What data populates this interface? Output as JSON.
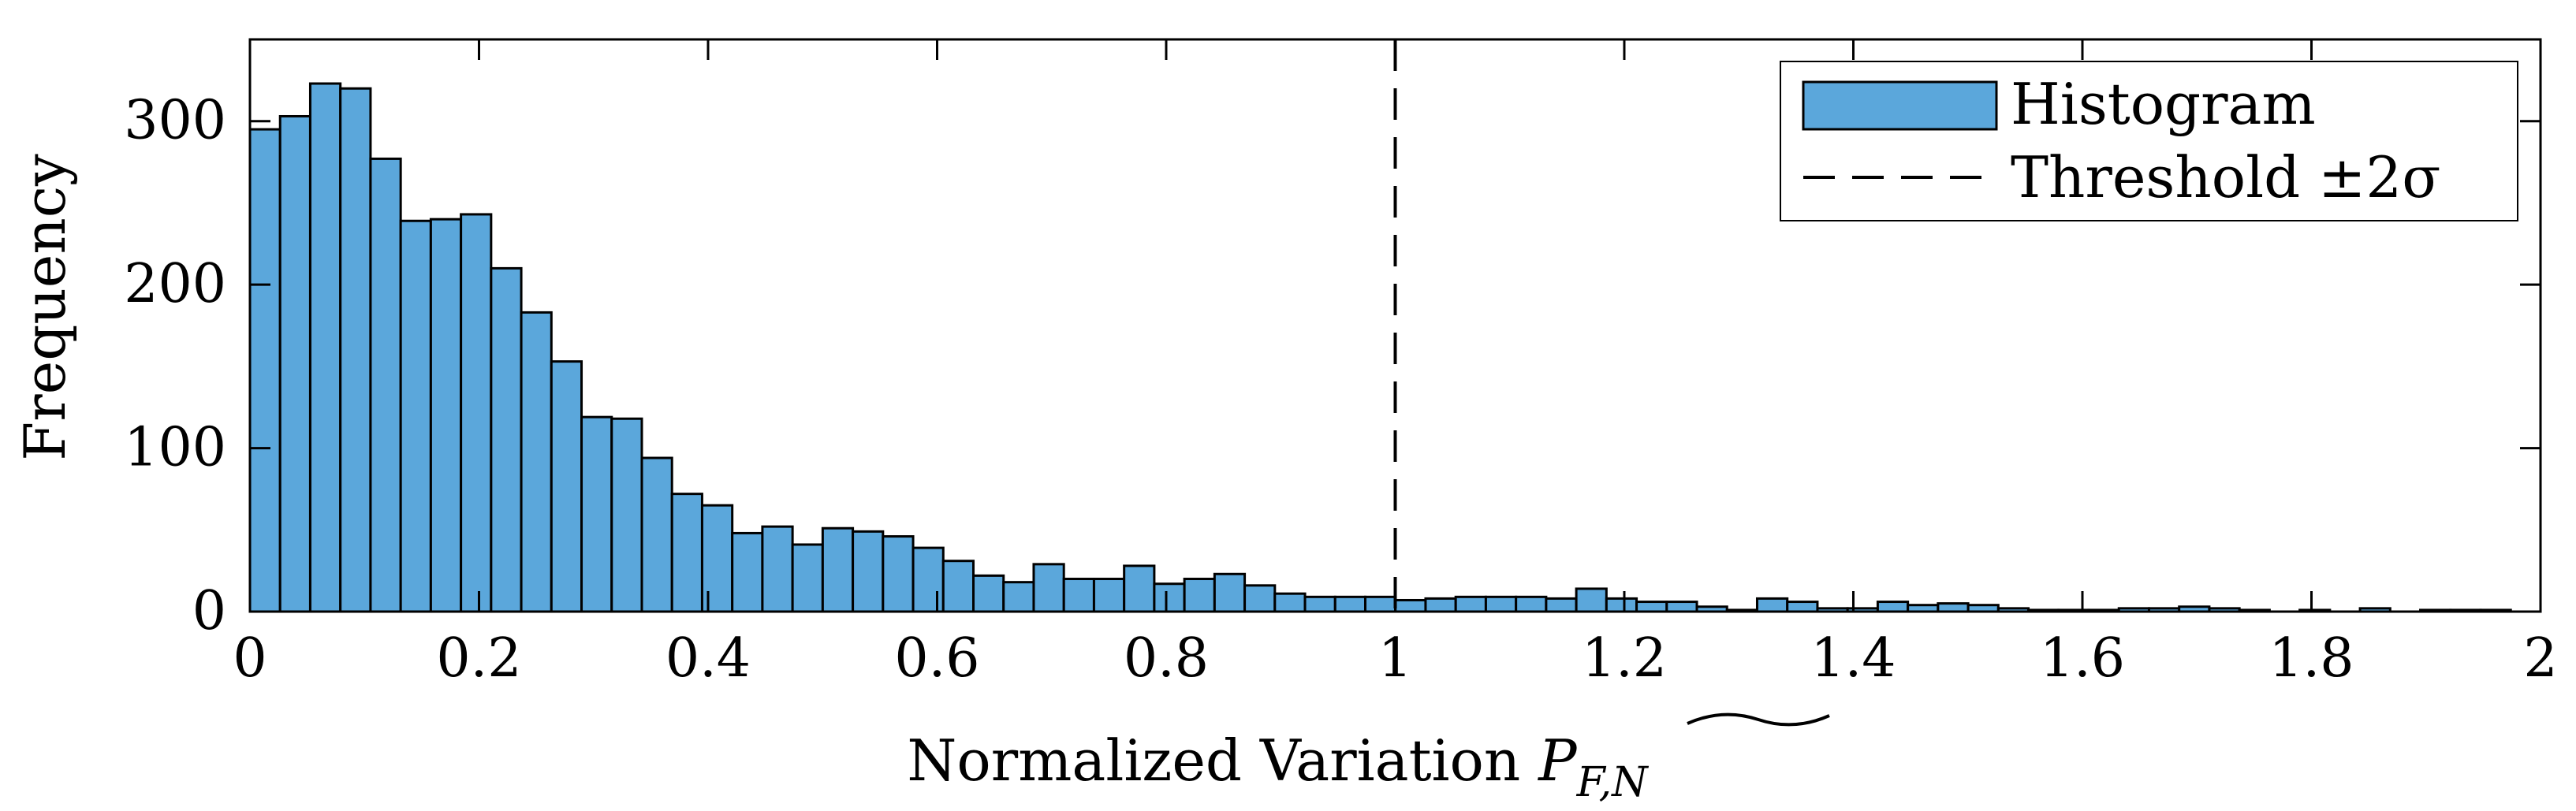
{
  "chart_data": {
    "type": "bar",
    "subtype": "histogram",
    "xlabel": "Normalized Variation ",
    "xlabel_symbol": "P",
    "xlabel_subscript": "F,N",
    "ylabel": "Frequency",
    "xlim": [
      0,
      2
    ],
    "ylim": [
      0,
      350
    ],
    "xticks": [
      0,
      0.2,
      0.4,
      0.6,
      0.8,
      1,
      1.2,
      1.4,
      1.6,
      1.8,
      2
    ],
    "xtick_labels": [
      "0",
      "0.2",
      "0.4",
      "0.6",
      "0.8",
      "1",
      "1.2",
      "1.4",
      "1.6",
      "1.8",
      "2"
    ],
    "yticks": [
      0,
      100,
      200,
      300
    ],
    "ytick_labels": [
      "0",
      "100",
      "200",
      "300"
    ],
    "grid": false,
    "box": true,
    "bin_width": 0.02632,
    "bin_start": 0,
    "values": [
      295,
      303,
      323,
      320,
      277,
      239,
      240,
      243,
      210,
      183,
      153,
      119,
      118,
      94,
      72,
      65,
      48,
      52,
      41,
      51,
      49,
      46,
      39,
      31,
      22,
      18,
      29,
      20,
      20,
      28,
      17,
      20,
      23,
      16,
      11,
      9,
      9,
      9,
      7,
      8,
      9,
      9,
      9,
      8,
      14,
      8,
      6,
      6,
      3,
      1,
      8,
      6,
      2,
      2,
      6,
      4,
      5,
      4,
      2,
      1,
      1,
      1,
      2,
      2,
      3,
      2,
      1,
      0,
      1,
      0,
      2,
      0,
      1,
      1,
      1,
      0
    ],
    "threshold_x": 1,
    "legend_position": "top-right",
    "legend": [
      {
        "label": "Histogram",
        "kind": "bar"
      },
      {
        "label": "Threshold ±2σ",
        "kind": "dashed-line"
      }
    ],
    "colors": {
      "bar_fill": "#5ba7db",
      "bar_edge": "#000000",
      "threshold": "#000000"
    }
  }
}
